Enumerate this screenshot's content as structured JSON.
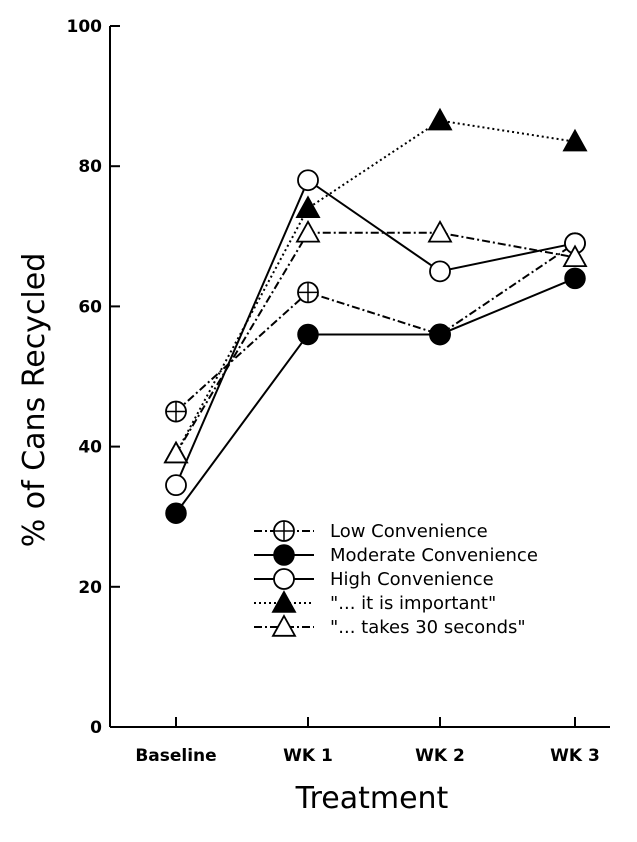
{
  "chart_data": {
    "type": "line",
    "title": "",
    "xlabel": "Treatment",
    "ylabel": "% of Cans Recycled",
    "categories": [
      "Baseline",
      "WK 1",
      "WK 2",
      "WK 3"
    ],
    "ylim": [
      0,
      100
    ],
    "yticks": [
      0,
      20,
      40,
      60,
      80,
      100
    ],
    "grid": false,
    "legend_position": "bottom-right",
    "series": [
      {
        "name": "Low Convenience",
        "values": [
          45,
          62,
          56,
          69
        ],
        "marker": "circle-plus",
        "line": "dash-dot"
      },
      {
        "name": "Moderate Convenience",
        "values": [
          30.5,
          56,
          56,
          64
        ],
        "marker": "filled-circle",
        "line": "solid"
      },
      {
        "name": "High Convenience",
        "values": [
          34.5,
          78,
          65,
          69
        ],
        "marker": "open-circle",
        "line": "solid"
      },
      {
        "name": "\"... it is important\"",
        "values": [
          39,
          74,
          86.5,
          83.5
        ],
        "marker": "filled-triangle",
        "line": "dotted"
      },
      {
        "name": "\"... takes 30 seconds\"",
        "values": [
          39,
          70.5,
          70.5,
          67
        ],
        "marker": "open-triangle",
        "line": "dash-dot"
      }
    ]
  }
}
